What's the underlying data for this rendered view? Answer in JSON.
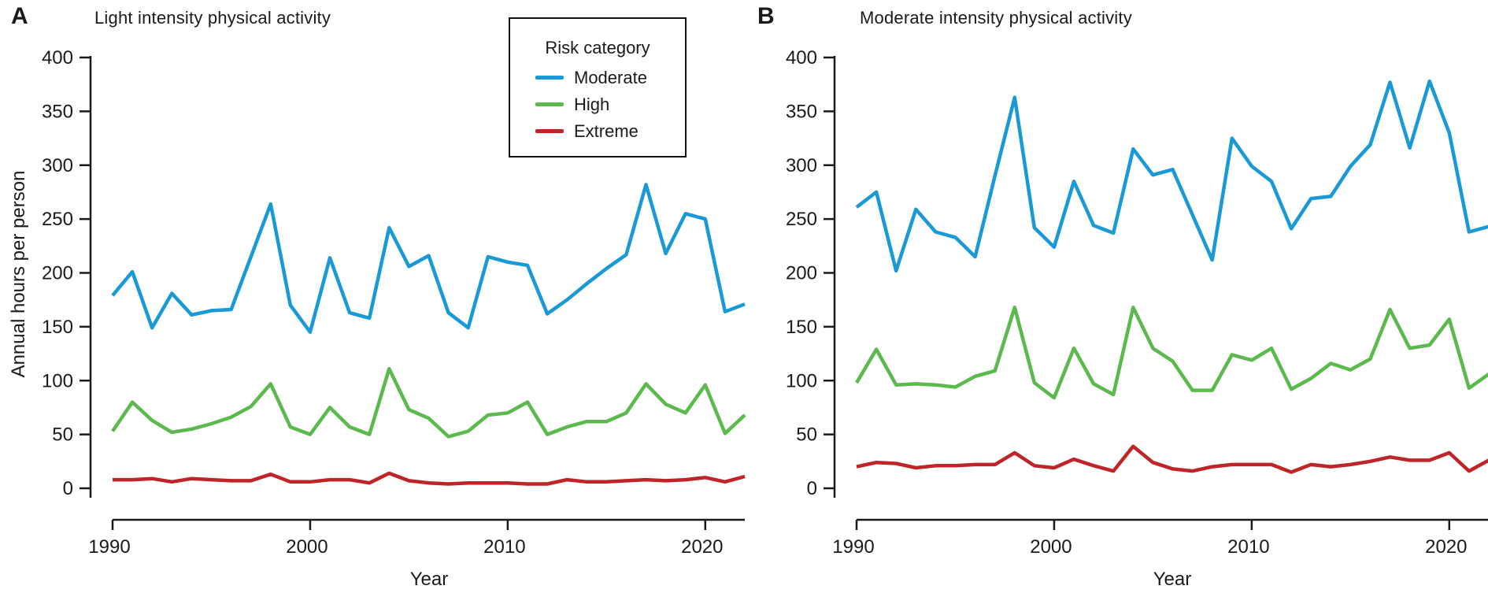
{
  "axes": {
    "y_ticks": [
      0,
      50,
      100,
      150,
      200,
      250,
      300,
      350,
      400
    ],
    "x_ticks": [
      1990,
      2000,
      2010,
      2020
    ]
  },
  "legend": {
    "title": "Risk category",
    "items": [
      {
        "label": "Moderate",
        "color": "#1999d6"
      },
      {
        "label": "High",
        "color": "#5cb94d"
      },
      {
        "label": "Extreme",
        "color": "#bf2429"
      }
    ]
  },
  "chart_data": [
    {
      "type": "line",
      "panel": "A",
      "title": "Light intensity physical activity",
      "xlabel": "Year",
      "ylabel": "Annual hours per person",
      "xlim": [
        1990,
        2022
      ],
      "ylim": [
        0,
        400
      ],
      "grid": false,
      "legend_position": "upper right of panel A",
      "x": [
        1990,
        1991,
        1992,
        1993,
        1994,
        1995,
        1996,
        1997,
        1998,
        1999,
        2000,
        2001,
        2002,
        2003,
        2004,
        2005,
        2006,
        2007,
        2008,
        2009,
        2010,
        2011,
        2012,
        2013,
        2014,
        2015,
        2016,
        2017,
        2018,
        2019,
        2020,
        2021,
        2022
      ],
      "series": [
        {
          "name": "Moderate",
          "color": "#1999d6",
          "values": [
            179,
            201,
            149,
            181,
            161,
            165,
            166,
            215,
            264,
            170,
            145,
            214,
            163,
            158,
            242,
            206,
            216,
            163,
            149,
            215,
            210,
            207,
            162,
            175,
            190,
            204,
            217,
            282,
            218,
            255,
            250,
            164,
            171
          ]
        },
        {
          "name": "High",
          "color": "#5cb94d",
          "values": [
            53,
            80,
            63,
            52,
            55,
            60,
            66,
            76,
            97,
            57,
            50,
            75,
            57,
            50,
            111,
            73,
            65,
            48,
            53,
            68,
            70,
            80,
            50,
            57,
            62,
            62,
            70,
            97,
            78,
            70,
            96,
            51,
            68
          ]
        },
        {
          "name": "Extreme",
          "color": "#bf2429",
          "values": [
            8,
            8,
            9,
            6,
            9,
            8,
            7,
            7,
            13,
            6,
            6,
            8,
            8,
            5,
            14,
            7,
            5,
            4,
            5,
            5,
            5,
            4,
            4,
            8,
            6,
            6,
            7,
            8,
            7,
            8,
            10,
            6,
            11
          ]
        }
      ]
    },
    {
      "type": "line",
      "panel": "B",
      "title": "Moderate intensity physical activity",
      "xlabel": "Year",
      "ylabel": "Annual hours per person",
      "xlim": [
        1990,
        2022
      ],
      "ylim": [
        0,
        400
      ],
      "grid": false,
      "x": [
        1990,
        1991,
        1992,
        1993,
        1994,
        1995,
        1996,
        1997,
        1998,
        1999,
        2000,
        2001,
        2002,
        2003,
        2004,
        2005,
        2006,
        2007,
        2008,
        2009,
        2010,
        2011,
        2012,
        2013,
        2014,
        2015,
        2016,
        2017,
        2018,
        2019,
        2020,
        2021,
        2022
      ],
      "series": [
        {
          "name": "Moderate",
          "color": "#1999d6",
          "values": [
            261,
            275,
            202,
            259,
            238,
            233,
            215,
            290,
            363,
            242,
            224,
            285,
            244,
            237,
            315,
            291,
            296,
            254,
            212,
            325,
            299,
            285,
            241,
            269,
            271,
            299,
            319,
            377,
            316,
            378,
            330,
            238,
            243
          ]
        },
        {
          "name": "High",
          "color": "#5cb94d",
          "values": [
            98,
            129,
            96,
            97,
            96,
            94,
            104,
            109,
            168,
            98,
            84,
            130,
            97,
            87,
            168,
            130,
            118,
            91,
            91,
            124,
            119,
            130,
            92,
            102,
            116,
            110,
            120,
            166,
            130,
            133,
            157,
            93,
            106
          ]
        },
        {
          "name": "Extreme",
          "color": "#bf2429",
          "values": [
            20,
            24,
            23,
            19,
            21,
            21,
            22,
            22,
            33,
            21,
            19,
            27,
            21,
            16,
            39,
            24,
            18,
            16,
            20,
            22,
            22,
            22,
            15,
            22,
            20,
            22,
            25,
            29,
            26,
            26,
            33,
            16,
            26
          ]
        }
      ]
    }
  ]
}
